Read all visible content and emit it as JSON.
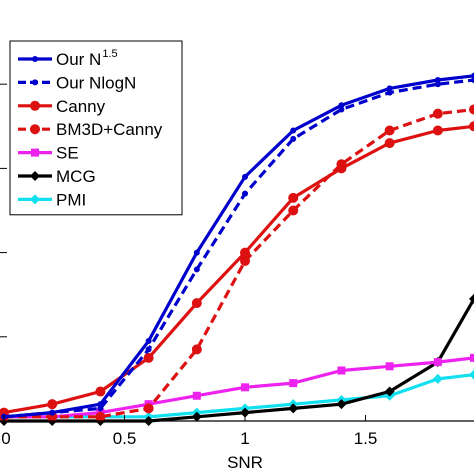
{
  "chart_data": {
    "type": "line",
    "xlabel": "SNR",
    "ylabel": "",
    "title": "",
    "xlim": [
      0,
      1.95
    ],
    "ylim": [
      0,
      1
    ],
    "xticks": [
      0,
      0.5,
      1,
      1.5
    ],
    "xtick_labels": [
      "0",
      "0.5",
      "1",
      "1.5"
    ],
    "grid": false,
    "legend_position": "top-left",
    "x": [
      0,
      0.2,
      0.4,
      0.6,
      0.8,
      1.0,
      1.2,
      1.4,
      1.6,
      1.8,
      1.95
    ],
    "series": [
      {
        "name": "Our N",
        "name_superscript": "1.5",
        "color": "#0000cc",
        "line_style": "solid",
        "marker": "dot",
        "values": [
          0.01,
          0.02,
          0.04,
          0.19,
          0.4,
          0.58,
          0.69,
          0.75,
          0.79,
          0.81,
          0.82
        ]
      },
      {
        "name": "Our NlogN",
        "color": "#0000cc",
        "line_style": "dashed",
        "marker": "dot",
        "values": [
          0.01,
          0.02,
          0.03,
          0.17,
          0.36,
          0.54,
          0.67,
          0.74,
          0.78,
          0.8,
          0.81
        ]
      },
      {
        "name": "Canny",
        "color": "#dd1111",
        "line_style": "solid",
        "marker": "circle",
        "values": [
          0.02,
          0.04,
          0.07,
          0.15,
          0.28,
          0.4,
          0.53,
          0.6,
          0.66,
          0.69,
          0.7
        ]
      },
      {
        "name": "BM3D+Canny",
        "color": "#dd1111",
        "line_style": "dashed",
        "marker": "circle",
        "values": [
          0.01,
          0.01,
          0.01,
          0.03,
          0.17,
          0.38,
          0.5,
          0.61,
          0.69,
          0.73,
          0.74
        ]
      },
      {
        "name": "SE",
        "color": "#ee22ee",
        "line_style": "solid",
        "marker": "square",
        "values": [
          0.01,
          0.01,
          0.02,
          0.04,
          0.06,
          0.08,
          0.09,
          0.12,
          0.13,
          0.14,
          0.15
        ]
      },
      {
        "name": "MCG",
        "color": "#000000",
        "line_style": "solid",
        "marker": "diamond",
        "values": [
          0.0,
          0.0,
          0.0,
          0.0,
          0.01,
          0.02,
          0.03,
          0.04,
          0.07,
          0.14,
          0.29
        ]
      },
      {
        "name": "PMI",
        "color": "#11e0f0",
        "line_style": "solid",
        "marker": "diamond",
        "values": [
          0.01,
          0.01,
          0.01,
          0.01,
          0.02,
          0.03,
          0.04,
          0.05,
          0.06,
          0.1,
          0.11
        ]
      }
    ]
  }
}
